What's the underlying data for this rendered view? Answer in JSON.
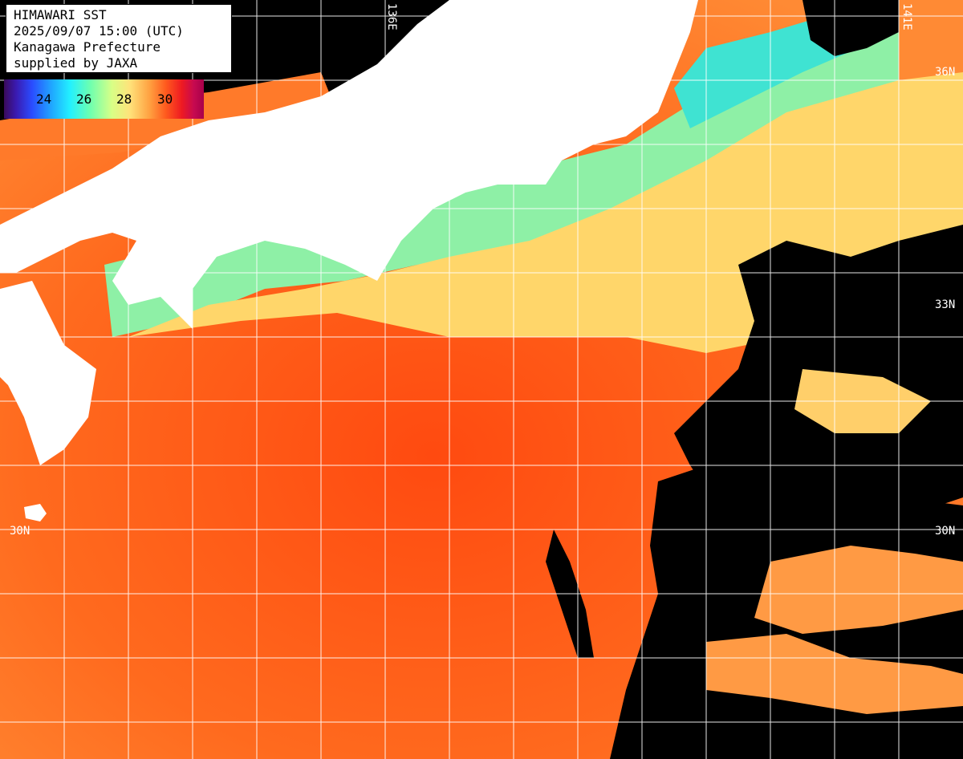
{
  "header": {
    "line1": "HIMAWARI SST",
    "line2": "2025/09/07 15:00 (UTC)",
    "line3": "Kanagawa Prefecture",
    "line4": "supplied by JAXA"
  },
  "legend": {
    "ticks": [
      "24",
      "26",
      "28",
      "30"
    ]
  },
  "grid_labels": {
    "lon_136": "136E",
    "lon_141": "141E",
    "lat_36_right": "36N",
    "lat_33_right": "33N",
    "lat_30_left": "30N",
    "lat_30_right": "30N"
  },
  "colors": {
    "land": "#ffffff",
    "cloud_mask": "#000000",
    "warm_sea": "#ff6a1a",
    "cool_sea": "#6cf2b8",
    "grid": "#ffffff"
  }
}
